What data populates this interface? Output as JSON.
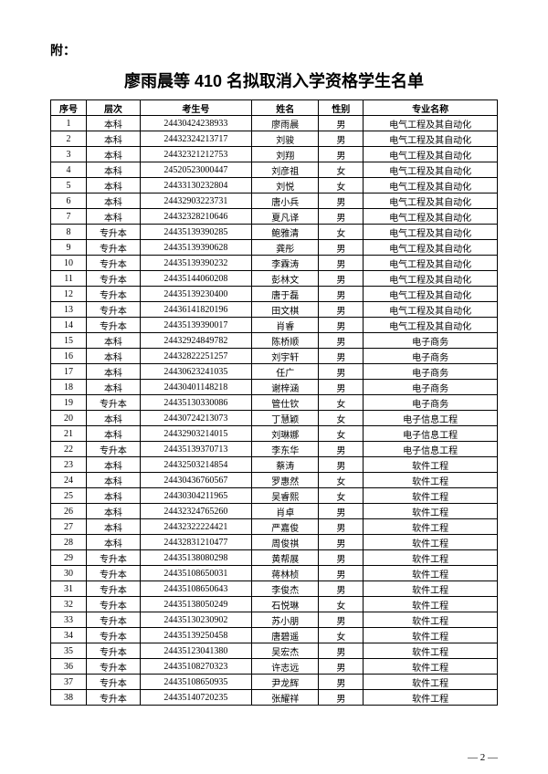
{
  "prefix": "附：",
  "title": "廖雨晨等 410 名拟取消入学资格学生名单",
  "columns": [
    "序号",
    "层次",
    "考生号",
    "姓名",
    "性别",
    "专业名称"
  ],
  "rows": [
    [
      "1",
      "本科",
      "24430424238933",
      "廖雨晨",
      "男",
      "电气工程及其自动化"
    ],
    [
      "2",
      "本科",
      "24432324213717",
      "刘骏",
      "男",
      "电气工程及其自动化"
    ],
    [
      "3",
      "本科",
      "24432321212753",
      "刘翔",
      "男",
      "电气工程及其自动化"
    ],
    [
      "4",
      "本科",
      "24520523000447",
      "刘彦祖",
      "女",
      "电气工程及其自动化"
    ],
    [
      "5",
      "本科",
      "24433130232804",
      "刘悦",
      "女",
      "电气工程及其自动化"
    ],
    [
      "6",
      "本科",
      "24432903223731",
      "唐小兵",
      "男",
      "电气工程及其自动化"
    ],
    [
      "7",
      "本科",
      "24432328210646",
      "夏凡译",
      "男",
      "电气工程及其自动化"
    ],
    [
      "8",
      "专升本",
      "24435139390285",
      "鲍雅清",
      "女",
      "电气工程及其自动化"
    ],
    [
      "9",
      "专升本",
      "24435139390628",
      "龚彤",
      "男",
      "电气工程及其自动化"
    ],
    [
      "10",
      "专升本",
      "24435139390232",
      "李霖涛",
      "男",
      "电气工程及其自动化"
    ],
    [
      "11",
      "专升本",
      "24435144060208",
      "彭林文",
      "男",
      "电气工程及其自动化"
    ],
    [
      "12",
      "专升本",
      "24435139230400",
      "唐于磊",
      "男",
      "电气工程及其自动化"
    ],
    [
      "13",
      "专升本",
      "24436141820196",
      "田文棋",
      "男",
      "电气工程及其自动化"
    ],
    [
      "14",
      "专升本",
      "24435139390017",
      "肖睿",
      "男",
      "电气工程及其自动化"
    ],
    [
      "15",
      "本科",
      "24432924849782",
      "陈桥顺",
      "男",
      "电子商务"
    ],
    [
      "16",
      "本科",
      "24432822251257",
      "刘宇轩",
      "男",
      "电子商务"
    ],
    [
      "17",
      "本科",
      "24430623241035",
      "任广",
      "男",
      "电子商务"
    ],
    [
      "18",
      "本科",
      "24430401148218",
      "谢梓涵",
      "男",
      "电子商务"
    ],
    [
      "19",
      "专升本",
      "24435130330086",
      "管仕钦",
      "女",
      "电子商务"
    ],
    [
      "20",
      "本科",
      "24430724213073",
      "丁慧颖",
      "女",
      "电子信息工程"
    ],
    [
      "21",
      "本科",
      "24432903214015",
      "刘琳娜",
      "女",
      "电子信息工程"
    ],
    [
      "22",
      "专升本",
      "24435139370713",
      "李东华",
      "男",
      "电子信息工程"
    ],
    [
      "23",
      "本科",
      "24432503214854",
      "蔡涛",
      "男",
      "软件工程"
    ],
    [
      "24",
      "本科",
      "24430436760567",
      "罗惠然",
      "女",
      "软件工程"
    ],
    [
      "25",
      "本科",
      "24430304211965",
      "吴睿熙",
      "女",
      "软件工程"
    ],
    [
      "26",
      "本科",
      "24432324765260",
      "肖卓",
      "男",
      "软件工程"
    ],
    [
      "27",
      "本科",
      "24432322224421",
      "严嘉俊",
      "男",
      "软件工程"
    ],
    [
      "28",
      "本科",
      "24432831210477",
      "周俊祺",
      "男",
      "软件工程"
    ],
    [
      "29",
      "专升本",
      "24435138080298",
      "黄帮展",
      "男",
      "软件工程"
    ],
    [
      "30",
      "专升本",
      "24435108650031",
      "蒋林桢",
      "男",
      "软件工程"
    ],
    [
      "31",
      "专升本",
      "24435108650643",
      "李俊杰",
      "男",
      "软件工程"
    ],
    [
      "32",
      "专升本",
      "24435138050249",
      "石悦琳",
      "女",
      "软件工程"
    ],
    [
      "33",
      "专升本",
      "24435130230902",
      "苏小朋",
      "男",
      "软件工程"
    ],
    [
      "34",
      "专升本",
      "24435139250458",
      "唐碧遥",
      "女",
      "软件工程"
    ],
    [
      "35",
      "专升本",
      "24435123041380",
      "吴宏杰",
      "男",
      "软件工程"
    ],
    [
      "36",
      "专升本",
      "24435108270323",
      "许志远",
      "男",
      "软件工程"
    ],
    [
      "37",
      "专升本",
      "24435108650935",
      "尹龙辉",
      "男",
      "软件工程"
    ],
    [
      "38",
      "专升本",
      "24435140720235",
      "张耀祥",
      "男",
      "软件工程"
    ]
  ],
  "page_num": "— 2 —"
}
